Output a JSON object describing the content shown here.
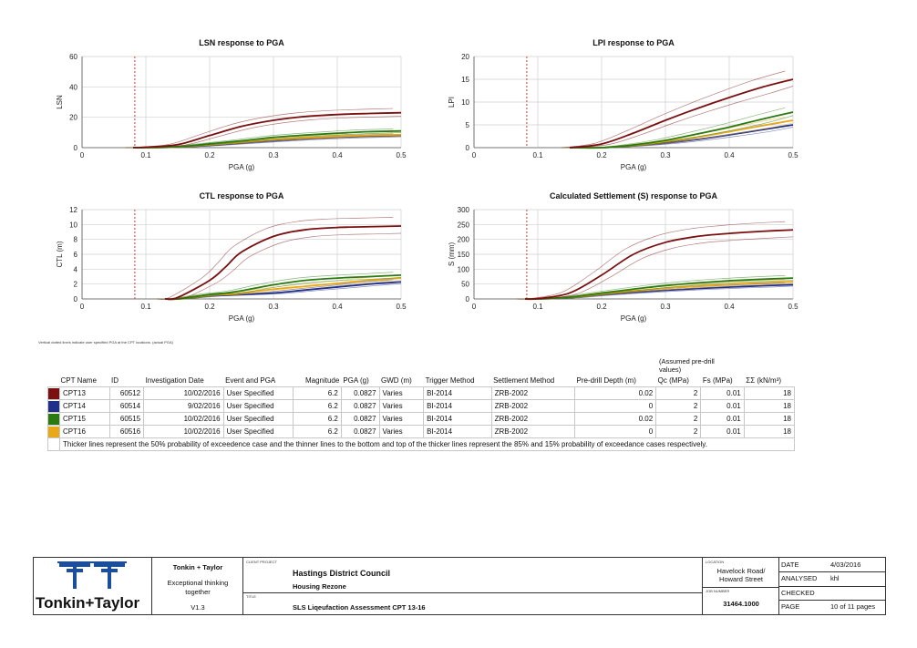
{
  "charts": [
    {
      "id": "lsn",
      "title": "LSN response to PGA",
      "xlabel": "PGA (g)",
      "ylabel": "LSN",
      "xlim": [
        0,
        0.5
      ],
      "ylim": [
        0,
        60
      ],
      "xticks": [
        "0",
        "0.1",
        "0.2",
        "0.3",
        "0.4",
        "0.5"
      ],
      "yticks": [
        "0",
        "20",
        "40",
        "60"
      ],
      "user_pga": 0.0827
    },
    {
      "id": "lpi",
      "title": "LPI response to PGA",
      "xlabel": "PGA (g)",
      "ylabel": "LPI",
      "xlim": [
        0,
        0.5
      ],
      "ylim": [
        0,
        20
      ],
      "xticks": [
        "0",
        "0.1",
        "0.2",
        "0.3",
        "0.4",
        "0.5"
      ],
      "yticks": [
        "0",
        "5",
        "10",
        "15",
        "20"
      ],
      "user_pga": 0.0827
    },
    {
      "id": "ctl",
      "title": "CTL response to PGA",
      "xlabel": "PGA (g)",
      "ylabel": "CTL (m)",
      "xlim": [
        0,
        0.5
      ],
      "ylim": [
        0,
        12
      ],
      "xticks": [
        "0",
        "0.1",
        "0.2",
        "0.3",
        "0.4",
        "0.5"
      ],
      "yticks": [
        "0",
        "2",
        "4",
        "6",
        "8",
        "10",
        "12"
      ],
      "user_pga": 0.0827
    },
    {
      "id": "settlement",
      "title": "Calculated Settlement (S) response to PGA",
      "xlabel": "PGA (g)",
      "ylabel": "S (mm)",
      "xlim": [
        0,
        0.5
      ],
      "ylim": [
        0,
        300
      ],
      "xticks": [
        "0",
        "0.1",
        "0.2",
        "0.3",
        "0.4",
        "0.5"
      ],
      "yticks": [
        "0",
        "50",
        "100",
        "150",
        "200",
        "250",
        "300"
      ],
      "user_pga": 0.0827
    }
  ],
  "chart_data": [
    {
      "type": "line",
      "title": "LSN response to PGA",
      "xlabel": "PGA (g)",
      "ylabel": "LSN",
      "xlim": [
        0,
        0.5
      ],
      "ylim": [
        0,
        60
      ],
      "grid": true,
      "x": [
        0.08,
        0.1,
        0.15,
        0.2,
        0.25,
        0.3,
        0.35,
        0.4,
        0.45,
        0.5
      ],
      "series": [
        {
          "name": "CPT13",
          "color": "#7a1010",
          "values": [
            0,
            0.3,
            2,
            8,
            14,
            18,
            20.5,
            21.8,
            22.5,
            23
          ]
        },
        {
          "name": "CPT14",
          "color": "#1f2f8a",
          "values": [
            0,
            0,
            0.4,
            1.5,
            3,
            4.5,
            5.8,
            6.8,
            7.5,
            8
          ]
        },
        {
          "name": "CPT15",
          "color": "#2a7a10",
          "values": [
            0,
            0,
            0.6,
            2.5,
            4.5,
            6.8,
            8.3,
            9.5,
            10.5,
            11
          ]
        },
        {
          "name": "CPT16",
          "color": "#e8a817",
          "values": [
            0,
            0,
            0.5,
            2,
            3.6,
            5.3,
            6.5,
            7.4,
            8.1,
            8.5
          ]
        }
      ]
    },
    {
      "type": "line",
      "title": "LPI response to PGA",
      "xlabel": "PGA (g)",
      "ylabel": "LPI",
      "xlim": [
        0,
        0.5
      ],
      "ylim": [
        0,
        20
      ],
      "grid": true,
      "x": [
        0.15,
        0.2,
        0.25,
        0.3,
        0.35,
        0.4,
        0.45,
        0.5
      ],
      "series": [
        {
          "name": "CPT13",
          "color": "#7a1010",
          "values": [
            0,
            0.8,
            3.2,
            6,
            8.6,
            11,
            13.2,
            15
          ]
        },
        {
          "name": "CPT14",
          "color": "#1f2f8a",
          "values": [
            0,
            0,
            0.4,
            1,
            1.8,
            2.8,
            3.9,
            5
          ]
        },
        {
          "name": "CPT15",
          "color": "#2a7a10",
          "values": [
            0,
            0,
            0.6,
            1.6,
            3,
            4.5,
            6.2,
            7.8
          ]
        },
        {
          "name": "CPT16",
          "color": "#e8a817",
          "values": [
            0,
            0,
            0.5,
            1.3,
            2.3,
            3.5,
            4.8,
            6
          ]
        }
      ]
    },
    {
      "type": "line",
      "title": "CTL response to PGA",
      "xlabel": "PGA (g)",
      "ylabel": "CTL (m)",
      "xlim": [
        0,
        0.5
      ],
      "ylim": [
        0,
        12
      ],
      "grid": true,
      "x": [
        0.13,
        0.15,
        0.2,
        0.225,
        0.25,
        0.3,
        0.35,
        0.4,
        0.45,
        0.5
      ],
      "series": [
        {
          "name": "CPT13",
          "color": "#7a1010",
          "values": [
            0,
            0.2,
            2.5,
            4.3,
            6.3,
            8.4,
            9.3,
            9.6,
            9.7,
            9.8
          ]
        },
        {
          "name": "CPT14",
          "color": "#1f2f8a",
          "values": [
            0,
            0,
            0.4,
            0.5,
            0.6,
            0.8,
            1.2,
            1.6,
            2,
            2.3
          ]
        },
        {
          "name": "CPT15",
          "color": "#2a7a10",
          "values": [
            0,
            0,
            0.6,
            0.8,
            1.1,
            1.9,
            2.5,
            2.8,
            3,
            3.2
          ]
        },
        {
          "name": "CPT16",
          "color": "#e8a817",
          "values": [
            0,
            0,
            0.5,
            0.6,
            0.8,
            1.3,
            1.7,
            2.1,
            2.5,
            2.8
          ]
        }
      ]
    },
    {
      "type": "line",
      "title": "Calculated Settlement (S) response to PGA",
      "xlabel": "PGA (g)",
      "ylabel": "S (mm)",
      "xlim": [
        0,
        0.5
      ],
      "ylim": [
        0,
        300
      ],
      "grid": true,
      "x": [
        0.08,
        0.1,
        0.15,
        0.2,
        0.25,
        0.3,
        0.35,
        0.4,
        0.45,
        0.5
      ],
      "series": [
        {
          "name": "CPT13",
          "color": "#7a1010",
          "values": [
            0,
            1,
            20,
            80,
            150,
            190,
            210,
            220,
            227,
            232
          ]
        },
        {
          "name": "CPT14",
          "color": "#1f2f8a",
          "values": [
            0,
            0,
            4,
            14,
            22,
            29,
            35,
            40,
            44,
            48
          ]
        },
        {
          "name": "CPT15",
          "color": "#2a7a10",
          "values": [
            0,
            0,
            6,
            20,
            33,
            45,
            54,
            61,
            66,
            70
          ]
        },
        {
          "name": "CPT16",
          "color": "#e8a817",
          "values": [
            0,
            0,
            5,
            17,
            27,
            36,
            43,
            49,
            54,
            58
          ]
        }
      ]
    }
  ],
  "footnote": "Vertical dotted line/s indicate user specified PGA at the CPT locations. (actual PGA)",
  "assumed_note": "(Assumed pre-drill values)",
  "table": {
    "headers": [
      "CPT Name",
      "ID",
      "Investigation Date",
      "Event and PGA",
      "Magnitude",
      "PGA (g)",
      "GWD (m)",
      "Trigger Method",
      "Settlement Method",
      "Pre-drill Depth (m)",
      "Qc (MPa)",
      "Fs (MPa)",
      "ΣΣ (kN/m³)"
    ],
    "rows": [
      {
        "color": "#7a1010",
        "name": "CPT13",
        "id": "60512",
        "date": "10/02/2016",
        "event": "User Specified",
        "magnitude": "6.2",
        "pga": "0.0827",
        "gwd": "Varies",
        "trigger": "BI-2014",
        "settlement": "ZRB-2002",
        "predrill": "0.02",
        "qc": "2",
        "fs": "0.01",
        "gamma": "18"
      },
      {
        "color": "#1f2f8a",
        "name": "CPT14",
        "id": "60514",
        "date": "9/02/2016",
        "event": "User Specified",
        "magnitude": "6.2",
        "pga": "0.0827",
        "gwd": "Varies",
        "trigger": "BI-2014",
        "settlement": "ZRB-2002",
        "predrill": "0",
        "qc": "2",
        "fs": "0.01",
        "gamma": "18"
      },
      {
        "color": "#2a7a10",
        "name": "CPT15",
        "id": "60515",
        "date": "10/02/2016",
        "event": "User Specified",
        "magnitude": "6.2",
        "pga": "0.0827",
        "gwd": "Varies",
        "trigger": "BI-2014",
        "settlement": "ZRB-2002",
        "predrill": "0.02",
        "qc": "2",
        "fs": "0.01",
        "gamma": "18"
      },
      {
        "color": "#e8a817",
        "name": "CPT16",
        "id": "60516",
        "date": "10/02/2016",
        "event": "User Specified",
        "magnitude": "6.2",
        "pga": "0.0827",
        "gwd": "Varies",
        "trigger": "BI-2014",
        "settlement": "ZRB-2002",
        "predrill": "0",
        "qc": "2",
        "fs": "0.01",
        "gamma": "18"
      }
    ],
    "note": "Thicker lines represent the 50% probability of exceedence case and the thinner lines to the bottom and top of the thicker lines represent the 85% and 15% probability of exceedance cases respectively."
  },
  "titleblock": {
    "company": "Tonkin + Taylor",
    "logo_text": "Tonkin+Taylor",
    "tagline": "Exceptional thinking together",
    "version": "V1.3",
    "client_label": "CLIENT PROJECT",
    "client": "Hastings District Council",
    "project": "Housing Rezone",
    "title_label": "TITLE",
    "title": "SLS Liqeufaction Assessment CPT 13-16",
    "location_label": "LOCATION",
    "location": "Havelock Road/ Howard Street",
    "job_label": "JOB NUMBER",
    "job_number": "31464.1000",
    "date_label": "DATE",
    "date": "4/03/2016",
    "analysed_label": "ANALYSED",
    "analysed": "khl",
    "checked_label": "CHECKED",
    "checked": "",
    "page_label": "PAGE",
    "page": "10 of 11 pages"
  }
}
